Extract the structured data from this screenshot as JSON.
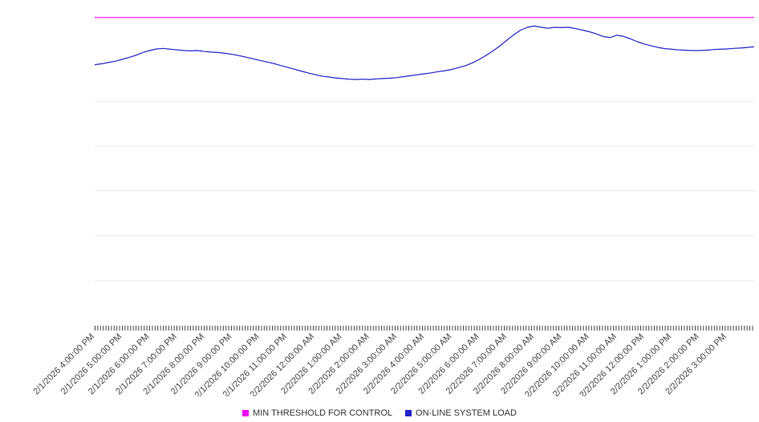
{
  "window": {
    "background": "#ffffff"
  },
  "colors": {
    "gridline": "#e6e6e6",
    "axis_ticks": "#444444",
    "tick_label": "#444444",
    "legend_text": "#333333"
  },
  "chart_data": {
    "type": "line",
    "title": "",
    "xlabel": "",
    "ylabel": "",
    "legend_position": "bottom-center",
    "grid": "horizontal-only",
    "y_axis": {
      "tick_labels_visible": false,
      "relative_range": [
        0,
        100
      ],
      "gridline_values": [
        14.3,
        28.6,
        42.9,
        57.1,
        71.4
      ]
    },
    "x_axis": {
      "minor_tick_comb": true,
      "label_rotation_deg": -45
    },
    "x_tick_labels": [
      "2/1/2026 4:00:00 PM",
      "2/1/2026 5:00:00 PM",
      "2/1/2026 6:00:00 PM",
      "2/1/2026 7:00:00 PM",
      "2/1/2026 8:00:00 PM",
      "2/1/2026 9:00:00 PM",
      "2/1/2026 10:00:00 PM",
      "2/1/2026 11:00:00 PM",
      "2/2/2026 12:00:00 AM",
      "2/2/2026 1:00:00 AM",
      "2/2/2026 2:00:00 AM",
      "2/2/2026 3:00:00 AM",
      "2/2/2026 4:00:00 AM",
      "2/2/2026 5:00:00 AM",
      "2/2/2026 6:00:00 AM",
      "2/2/2026 7:00:00 AM",
      "2/2/2026 8:00:00 AM",
      "2/2/2026 9:00:00 AM",
      "2/2/2026 10:00:00 AM",
      "2/2/2026 11:00:00 AM",
      "2/2/2026 12:00:00 PM",
      "2/2/2026 1:00:00 PM",
      "2/2/2026 2:00:00 PM",
      "2/2/2026 3:00:00 PM"
    ],
    "series": [
      {
        "name": "MIN THRESHOLD FOR CONTROL",
        "color": "#f000f0",
        "kind": "constant-threshold",
        "value": 98.0
      },
      {
        "name": "ON-LINE SYSTEM LOAD",
        "color": "#2222cc",
        "kind": "line",
        "x_start_hours": 0,
        "x_step_hours": 0.25,
        "values_note": "relative load, 0-100 scale estimated from plot (no y labels visible), 15-min resolution starting 2/1/2026 4:00 PM",
        "values": [
          83.0,
          83.3,
          83.7,
          84.1,
          84.7,
          85.3,
          86.0,
          86.9,
          87.5,
          88.0,
          88.2,
          87.9,
          87.7,
          87.5,
          87.4,
          87.5,
          87.2,
          87.0,
          86.9,
          86.6,
          86.3,
          85.9,
          85.4,
          84.9,
          84.4,
          83.9,
          83.4,
          82.8,
          82.2,
          81.6,
          81.0,
          80.4,
          79.9,
          79.4,
          79.1,
          78.8,
          78.6,
          78.4,
          78.3,
          78.4,
          78.3,
          78.5,
          78.6,
          78.7,
          78.9,
          79.2,
          79.5,
          79.8,
          80.1,
          80.4,
          80.8,
          81.1,
          81.5,
          82.1,
          82.7,
          83.6,
          84.7,
          86.0,
          87.4,
          89.0,
          90.8,
          92.5,
          94.0,
          94.9,
          95.3,
          94.9,
          94.6,
          94.9,
          94.8,
          94.9,
          94.5,
          94.0,
          93.5,
          92.8,
          92.0,
          91.6,
          92.4,
          92.0,
          91.2,
          90.3,
          89.6,
          89.0,
          88.5,
          88.1,
          87.9,
          87.7,
          87.6,
          87.5,
          87.5,
          87.6,
          87.8,
          87.9,
          88.0,
          88.2,
          88.3,
          88.5,
          88.7
        ]
      }
    ]
  }
}
